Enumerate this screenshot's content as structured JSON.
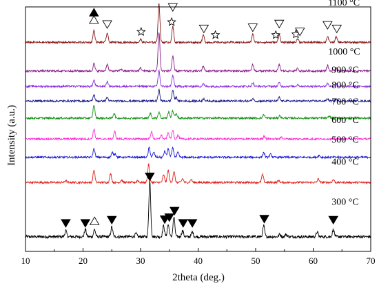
{
  "chart_data": {
    "type": "line",
    "title": "",
    "xlabel": "2theta (deg.)",
    "ylabel": "Intensity (a.u.)",
    "xlim": [
      10,
      70
    ],
    "xticks": [
      10,
      20,
      30,
      40,
      50,
      60,
      70
    ],
    "grid": false,
    "series": [
      {
        "name": "300 °C",
        "color": "#000000",
        "baseline": 0.06,
        "noise": 0.006,
        "peaks": [
          [
            17.0,
            0.025
          ],
          [
            20.4,
            0.03
          ],
          [
            22.0,
            0.03
          ],
          [
            25.0,
            0.04
          ],
          [
            29.2,
            0.012
          ],
          [
            31.6,
            0.23
          ],
          [
            34.0,
            0.045
          ],
          [
            34.8,
            0.05
          ],
          [
            35.8,
            0.08
          ],
          [
            37.3,
            0.025
          ],
          [
            39.0,
            0.02
          ],
          [
            51.4,
            0.045
          ],
          [
            54.2,
            0.01
          ],
          [
            55.3,
            0.01
          ],
          [
            60.7,
            0.02
          ],
          [
            63.5,
            0.03
          ]
        ]
      },
      {
        "name": "400 °C",
        "color": "#e0201b",
        "baseline": 0.282,
        "noise": 0.004,
        "peaks": [
          [
            17.0,
            0.008
          ],
          [
            21.9,
            0.05
          ],
          [
            24.8,
            0.035
          ],
          [
            26.7,
            0.01
          ],
          [
            29.5,
            0.008
          ],
          [
            31.4,
            0.075
          ],
          [
            34.0,
            0.03
          ],
          [
            34.8,
            0.05
          ],
          [
            35.8,
            0.045
          ],
          [
            37.3,
            0.015
          ],
          [
            38.8,
            0.012
          ],
          [
            51.2,
            0.032
          ],
          [
            54.0,
            0.008
          ],
          [
            60.9,
            0.015
          ],
          [
            63.5,
            0.012
          ]
        ]
      },
      {
        "name": "500 °C",
        "color": "#1515d8",
        "baseline": 0.385,
        "noise": 0.004,
        "peaks": [
          [
            21.9,
            0.035
          ],
          [
            25.1,
            0.02
          ],
          [
            25.6,
            0.015
          ],
          [
            31.5,
            0.04
          ],
          [
            32.3,
            0.02
          ],
          [
            34.2,
            0.025
          ],
          [
            34.8,
            0.035
          ],
          [
            35.6,
            0.04
          ],
          [
            36.5,
            0.02
          ],
          [
            51.4,
            0.02
          ],
          [
            52.6,
            0.012
          ],
          [
            61.0,
            0.008
          ]
        ]
      },
      {
        "name": "600 °C",
        "color": "#ff2bd9",
        "baseline": 0.46,
        "noise": 0.004,
        "peaks": [
          [
            21.9,
            0.04
          ],
          [
            25.5,
            0.03
          ],
          [
            31.9,
            0.03
          ],
          [
            33.6,
            0.015
          ],
          [
            34.8,
            0.025
          ],
          [
            35.6,
            0.035
          ],
          [
            36.5,
            0.015
          ],
          [
            51.5,
            0.012
          ],
          [
            54.5,
            0.008
          ]
        ]
      },
      {
        "name": "700 °C",
        "color": "#119111",
        "baseline": 0.545,
        "noise": 0.004,
        "peaks": [
          [
            21.9,
            0.055
          ],
          [
            25.4,
            0.02
          ],
          [
            31.7,
            0.02
          ],
          [
            33.2,
            0.025
          ],
          [
            34.9,
            0.025
          ],
          [
            35.6,
            0.03
          ],
          [
            36.2,
            0.02
          ],
          [
            51.4,
            0.015
          ],
          [
            54.2,
            0.01
          ],
          [
            62.8,
            0.008
          ]
        ]
      },
      {
        "name": "800 °C",
        "color": "#1b1b8a",
        "baseline": 0.615,
        "noise": 0.004,
        "peaks": [
          [
            21.9,
            0.025
          ],
          [
            24.2,
            0.015
          ],
          [
            33.2,
            0.045
          ],
          [
            35.6,
            0.045
          ],
          [
            36.2,
            0.015
          ],
          [
            41.0,
            0.01
          ],
          [
            49.5,
            0.01
          ],
          [
            54.1,
            0.015
          ],
          [
            62.5,
            0.01
          ],
          [
            64.0,
            0.008
          ]
        ]
      },
      {
        "name": "900 °C",
        "color": "#8a2be2",
        "baseline": 0.675,
        "noise": 0.004,
        "peaks": [
          [
            21.9,
            0.025
          ],
          [
            24.2,
            0.02
          ],
          [
            33.2,
            0.065
          ],
          [
            35.6,
            0.045
          ],
          [
            40.9,
            0.01
          ],
          [
            49.5,
            0.015
          ],
          [
            54.1,
            0.015
          ],
          [
            57.3,
            0.008
          ],
          [
            62.5,
            0.012
          ],
          [
            64.0,
            0.01
          ]
        ]
      },
      {
        "name": "1000 °C",
        "color": "#8b1a8b",
        "baseline": 0.738,
        "noise": 0.004,
        "peaks": [
          [
            21.9,
            0.03
          ],
          [
            24.2,
            0.028
          ],
          [
            26.6,
            0.008
          ],
          [
            30.0,
            0.012
          ],
          [
            33.2,
            0.16
          ],
          [
            35.6,
            0.06
          ],
          [
            40.9,
            0.02
          ],
          [
            49.5,
            0.025
          ],
          [
            54.1,
            0.025
          ],
          [
            57.3,
            0.01
          ],
          [
            62.5,
            0.022
          ],
          [
            64.0,
            0.015
          ]
        ]
      },
      {
        "name": "1100 °C",
        "color": "#8b1a1a",
        "baseline": 0.855,
        "noise": 0.004,
        "peaks": [
          [
            21.9,
            0.05
          ],
          [
            24.2,
            0.038
          ],
          [
            30.0,
            0.012
          ],
          [
            33.2,
            0.16
          ],
          [
            35.6,
            0.065
          ],
          [
            40.9,
            0.03
          ],
          [
            49.5,
            0.035
          ],
          [
            54.1,
            0.035
          ],
          [
            57.3,
            0.015
          ],
          [
            62.5,
            0.025
          ],
          [
            64.0,
            0.022
          ]
        ]
      }
    ],
    "markers": [
      {
        "symbol": "filled-down-triangle",
        "x": 17.0,
        "y": 0.115
      },
      {
        "symbol": "filled-down-triangle",
        "x": 20.4,
        "y": 0.115
      },
      {
        "symbol": "open-up-triangle",
        "x": 22.0,
        "y": 0.125
      },
      {
        "symbol": "filled-down-triangle",
        "x": 25.0,
        "y": 0.128
      },
      {
        "symbol": "filled-down-triangle",
        "x": 31.6,
        "y": 0.305
      },
      {
        "symbol": "filled-down-triangle",
        "x": 34.2,
        "y": 0.13
      },
      {
        "symbol": "filled-down-triangle",
        "x": 35.0,
        "y": 0.138
      },
      {
        "symbol": "filled-down-triangle",
        "x": 35.9,
        "y": 0.165
      },
      {
        "symbol": "filled-down-triangle",
        "x": 37.4,
        "y": 0.115
      },
      {
        "symbol": "filled-down-triangle",
        "x": 39.0,
        "y": 0.115
      },
      {
        "symbol": "filled-down-triangle",
        "x": 51.5,
        "y": 0.132
      },
      {
        "symbol": "filled-down-triangle",
        "x": 63.5,
        "y": 0.128
      },
      {
        "symbol": "filled-up-triangle",
        "x": 21.9,
        "y": 0.978
      },
      {
        "symbol": "open-up-triangle",
        "x": 21.9,
        "y": 0.948
      },
      {
        "symbol": "open-down-triangle",
        "x": 24.2,
        "y": 0.928
      },
      {
        "symbol": "open-star",
        "x": 30.1,
        "y": 0.898
      },
      {
        "symbol": "open-down-triangle",
        "x": 33.2,
        "y": 1.052
      },
      {
        "symbol": "open-star",
        "x": 35.4,
        "y": 0.938
      },
      {
        "symbol": "open-down-triangle",
        "x": 35.6,
        "y": 0.998
      },
      {
        "symbol": "open-down-triangle",
        "x": 41.0,
        "y": 0.91
      },
      {
        "symbol": "open-star",
        "x": 43.0,
        "y": 0.885
      },
      {
        "symbol": "open-down-triangle",
        "x": 49.5,
        "y": 0.915
      },
      {
        "symbol": "open-star",
        "x": 53.5,
        "y": 0.885
      },
      {
        "symbol": "open-down-triangle",
        "x": 54.1,
        "y": 0.93
      },
      {
        "symbol": "open-star",
        "x": 57.0,
        "y": 0.888
      },
      {
        "symbol": "open-down-triangle",
        "x": 57.7,
        "y": 0.898
      },
      {
        "symbol": "open-down-triangle",
        "x": 62.5,
        "y": 0.925
      },
      {
        "symbol": "open-down-triangle",
        "x": 64.1,
        "y": 0.91
      }
    ],
    "labels": [
      {
        "text": "1100 °C",
        "x": 62.6,
        "y": 1.005
      },
      {
        "text": "1000 °C",
        "x": 62.6,
        "y": 0.805
      },
      {
        "text": "900 °C",
        "x": 63.2,
        "y": 0.73
      },
      {
        "text": "800 °C",
        "x": 63.2,
        "y": 0.668
      },
      {
        "text": "700 °C",
        "x": 63.2,
        "y": 0.6
      },
      {
        "text": "600 °C",
        "x": 63.2,
        "y": 0.525
      },
      {
        "text": "500 °C",
        "x": 63.2,
        "y": 0.445
      },
      {
        "text": "400 °C",
        "x": 63.2,
        "y": 0.355
      },
      {
        "text": "300 °C",
        "x": 63.2,
        "y": 0.19
      }
    ]
  }
}
